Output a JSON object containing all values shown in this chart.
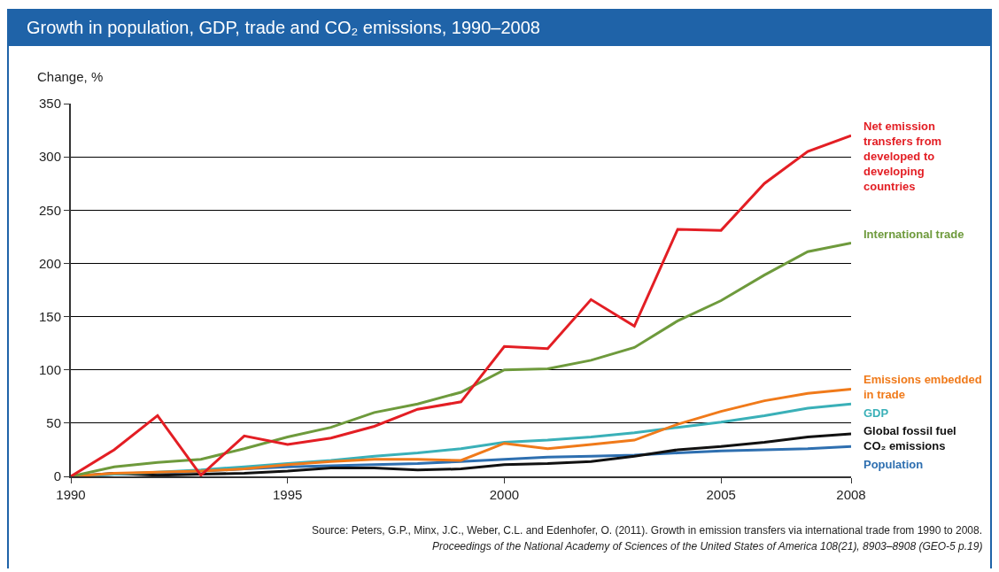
{
  "chart_data": {
    "type": "line",
    "title": "Growth in population, GDP, trade and CO₂ emissions, 1990–2008",
    "ylabel": "Change, %",
    "x": [
      1990,
      1991,
      1992,
      1993,
      1994,
      1995,
      1996,
      1997,
      1998,
      1999,
      2000,
      2001,
      2002,
      2003,
      2004,
      2005,
      2006,
      2007,
      2008
    ],
    "xlim": [
      1990,
      2008
    ],
    "xticks": [
      1990,
      1995,
      2000,
      2005,
      2008
    ],
    "ylim": [
      0,
      350
    ],
    "yticks": [
      0,
      50,
      100,
      150,
      200,
      250,
      300,
      350
    ],
    "grid": "y",
    "legend": false,
    "marker": "none",
    "line_style": "solid",
    "series": [
      {
        "name": "Net emission transfers from developed to developing countries",
        "color": "#e31e24",
        "values": [
          0,
          25,
          57,
          1,
          38,
          30,
          36,
          47,
          63,
          70,
          122,
          120,
          166,
          141,
          232,
          231,
          275,
          305,
          320
        ]
      },
      {
        "name": "International trade",
        "color": "#6e9a3c",
        "values": [
          0,
          9,
          13,
          16,
          26,
          37,
          46,
          60,
          68,
          79,
          100,
          101,
          109,
          121,
          146,
          165,
          189,
          211,
          219
        ]
      },
      {
        "name": "Emissions embedded in trade",
        "color": "#f07a1a",
        "values": [
          0,
          3,
          4,
          5,
          7,
          11,
          14,
          16,
          16,
          15,
          31,
          26,
          30,
          34,
          49,
          61,
          71,
          78,
          82
        ]
      },
      {
        "name": "GDP",
        "color": "#3ab0b8",
        "values": [
          0,
          2,
          4,
          6,
          9,
          12,
          15,
          19,
          22,
          26,
          32,
          34,
          37,
          41,
          46,
          51,
          57,
          64,
          68
        ]
      },
      {
        "name": "Global fossil fuel CO₂ emissions",
        "color": "#111111",
        "values": [
          0,
          3,
          1,
          2,
          3,
          5,
          8,
          8,
          6,
          7,
          11,
          12,
          14,
          19,
          25,
          28,
          32,
          37,
          40
        ]
      },
      {
        "name": "Population",
        "color": "#2e6fb0",
        "values": [
          0,
          2,
          3,
          5,
          7,
          9,
          10,
          11,
          12,
          14,
          16,
          18,
          19,
          20,
          22,
          24,
          25,
          26,
          28
        ]
      }
    ],
    "annotations": [
      "Source: Peters, G.P., Minx, J.C., Weber, C.L. and Edenhofer, O. (2011). Growth in emission transfers via international trade from 1990 to 2008.",
      "Proceedings of the National Academy of Sciences of the United States of America 108(21), 8903–8908 (GEO-5 p.19)"
    ]
  }
}
